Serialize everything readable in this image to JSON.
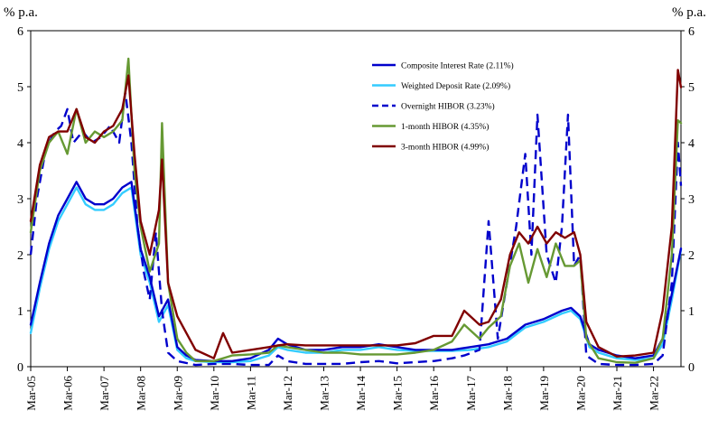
{
  "chart_data": {
    "type": "line",
    "title": "",
    "y_unit_left": "% p.a.",
    "y_unit_right": "% p.a.",
    "ylim": [
      0,
      6
    ],
    "yticks": [
      0,
      1,
      2,
      3,
      4,
      5,
      6
    ],
    "xlim": [
      "2005-03",
      "2022-12"
    ],
    "xticks": [
      "Mar-05",
      "Mar-06",
      "Mar-07",
      "Mar-08",
      "Mar-09",
      "Mar-10",
      "Mar-11",
      "Mar-12",
      "Mar-13",
      "Mar-14",
      "Mar-15",
      "Mar-16",
      "Mar-17",
      "Mar-18",
      "Mar-19",
      "Mar-20",
      "Mar-21",
      "Mar-22"
    ],
    "legend_position": "top-right",
    "grid": false,
    "series": [
      {
        "name": "Composite Interest Rate (2.11%)",
        "color": "#0000cc",
        "dash": "solid",
        "points": [
          [
            "2005-03",
            0.75
          ],
          [
            "2005-06",
            1.5
          ],
          [
            "2005-09",
            2.2
          ],
          [
            "2005-12",
            2.7
          ],
          [
            "2006-03",
            3.0
          ],
          [
            "2006-06",
            3.3
          ],
          [
            "2006-09",
            3.0
          ],
          [
            "2006-12",
            2.9
          ],
          [
            "2007-03",
            2.9
          ],
          [
            "2007-06",
            3.0
          ],
          [
            "2007-09",
            3.2
          ],
          [
            "2007-12",
            3.3
          ],
          [
            "2008-03",
            2.1
          ],
          [
            "2008-06",
            1.6
          ],
          [
            "2008-09",
            0.9
          ],
          [
            "2008-12",
            1.2
          ],
          [
            "2009-03",
            0.35
          ],
          [
            "2009-06",
            0.2
          ],
          [
            "2009-09",
            0.12
          ],
          [
            "2010-03",
            0.1
          ],
          [
            "2010-09",
            0.1
          ],
          [
            "2011-03",
            0.15
          ],
          [
            "2011-09",
            0.3
          ],
          [
            "2011-12",
            0.5
          ],
          [
            "2012-03",
            0.4
          ],
          [
            "2012-09",
            0.3
          ],
          [
            "2013-03",
            0.3
          ],
          [
            "2013-09",
            0.35
          ],
          [
            "2014-03",
            0.35
          ],
          [
            "2014-09",
            0.4
          ],
          [
            "2015-03",
            0.35
          ],
          [
            "2015-09",
            0.3
          ],
          [
            "2016-03",
            0.3
          ],
          [
            "2016-09",
            0.3
          ],
          [
            "2017-03",
            0.35
          ],
          [
            "2017-09",
            0.4
          ],
          [
            "2018-03",
            0.5
          ],
          [
            "2018-09",
            0.75
          ],
          [
            "2019-03",
            0.85
          ],
          [
            "2019-09",
            1.0
          ],
          [
            "2019-12",
            1.05
          ],
          [
            "2020-03",
            0.9
          ],
          [
            "2020-06",
            0.4
          ],
          [
            "2020-09",
            0.3
          ],
          [
            "2021-03",
            0.2
          ],
          [
            "2021-09",
            0.15
          ],
          [
            "2022-03",
            0.2
          ],
          [
            "2022-06",
            0.5
          ],
          [
            "2022-09",
            1.3
          ],
          [
            "2022-12",
            2.11
          ]
        ]
      },
      {
        "name": "Weighted Deposit Rate (2.09%)",
        "color": "#33ccff",
        "dash": "solid",
        "points": [
          [
            "2005-03",
            0.6
          ],
          [
            "2005-06",
            1.4
          ],
          [
            "2005-09",
            2.1
          ],
          [
            "2005-12",
            2.6
          ],
          [
            "2006-03",
            2.9
          ],
          [
            "2006-06",
            3.2
          ],
          [
            "2006-09",
            2.9
          ],
          [
            "2006-12",
            2.8
          ],
          [
            "2007-03",
            2.8
          ],
          [
            "2007-06",
            2.9
          ],
          [
            "2007-09",
            3.1
          ],
          [
            "2007-12",
            3.2
          ],
          [
            "2008-03",
            2.0
          ],
          [
            "2008-06",
            1.5
          ],
          [
            "2008-09",
            0.8
          ],
          [
            "2008-12",
            1.1
          ],
          [
            "2009-03",
            0.3
          ],
          [
            "2009-06",
            0.15
          ],
          [
            "2009-09",
            0.1
          ],
          [
            "2010-03",
            0.08
          ],
          [
            "2010-09",
            0.08
          ],
          [
            "2011-03",
            0.1
          ],
          [
            "2011-09",
            0.2
          ],
          [
            "2011-12",
            0.35
          ],
          [
            "2012-03",
            0.3
          ],
          [
            "2012-09",
            0.25
          ],
          [
            "2013-03",
            0.25
          ],
          [
            "2013-09",
            0.3
          ],
          [
            "2014-03",
            0.3
          ],
          [
            "2014-09",
            0.35
          ],
          [
            "2015-03",
            0.3
          ],
          [
            "2015-09",
            0.28
          ],
          [
            "2016-03",
            0.28
          ],
          [
            "2016-09",
            0.28
          ],
          [
            "2017-03",
            0.3
          ],
          [
            "2017-09",
            0.35
          ],
          [
            "2018-03",
            0.45
          ],
          [
            "2018-09",
            0.7
          ],
          [
            "2019-03",
            0.8
          ],
          [
            "2019-09",
            0.95
          ],
          [
            "2019-12",
            1.0
          ],
          [
            "2020-03",
            0.85
          ],
          [
            "2020-06",
            0.35
          ],
          [
            "2020-09",
            0.25
          ],
          [
            "2021-03",
            0.15
          ],
          [
            "2021-09",
            0.12
          ],
          [
            "2022-03",
            0.15
          ],
          [
            "2022-06",
            0.4
          ],
          [
            "2022-09",
            1.2
          ],
          [
            "2022-12",
            2.09
          ]
        ]
      },
      {
        "name": "Overnight HIBOR (3.23%)",
        "color": "#0000cc",
        "dash": "dashed",
        "points": [
          [
            "2005-03",
            2.0
          ],
          [
            "2005-05",
            3.0
          ],
          [
            "2005-08",
            3.9
          ],
          [
            "2005-11",
            4.2
          ],
          [
            "2006-01",
            4.3
          ],
          [
            "2006-03",
            4.6
          ],
          [
            "2006-05",
            4.0
          ],
          [
            "2006-08",
            4.2
          ],
          [
            "2006-11",
            4.0
          ],
          [
            "2007-02",
            4.1
          ],
          [
            "2007-05",
            4.3
          ],
          [
            "2007-08",
            4.0
          ],
          [
            "2007-10",
            4.9
          ],
          [
            "2007-12",
            4.0
          ],
          [
            "2008-02",
            2.5
          ],
          [
            "2008-04",
            1.7
          ],
          [
            "2008-06",
            1.2
          ],
          [
            "2008-08",
            2.4
          ],
          [
            "2008-10",
            1.0
          ],
          [
            "2008-12",
            0.25
          ],
          [
            "2009-03",
            0.1
          ],
          [
            "2009-09",
            0.03
          ],
          [
            "2010-03",
            0.05
          ],
          [
            "2010-09",
            0.05
          ],
          [
            "2011-03",
            0.03
          ],
          [
            "2011-09",
            0.03
          ],
          [
            "2011-12",
            0.2
          ],
          [
            "2012-03",
            0.1
          ],
          [
            "2012-09",
            0.05
          ],
          [
            "2013-03",
            0.05
          ],
          [
            "2013-09",
            0.05
          ],
          [
            "2014-03",
            0.08
          ],
          [
            "2014-09",
            0.1
          ],
          [
            "2015-03",
            0.06
          ],
          [
            "2015-09",
            0.08
          ],
          [
            "2016-03",
            0.1
          ],
          [
            "2016-09",
            0.15
          ],
          [
            "2017-01",
            0.2
          ],
          [
            "2017-06",
            0.3
          ],
          [
            "2017-09",
            2.6
          ],
          [
            "2017-12",
            0.5
          ],
          [
            "2018-03",
            1.5
          ],
          [
            "2018-06",
            2.5
          ],
          [
            "2018-09",
            3.8
          ],
          [
            "2018-11",
            2.0
          ],
          [
            "2019-01",
            4.5
          ],
          [
            "2019-04",
            2.0
          ],
          [
            "2019-07",
            1.5
          ],
          [
            "2019-09",
            2.5
          ],
          [
            "2019-11",
            4.5
          ],
          [
            "2020-01",
            1.8
          ],
          [
            "2020-03",
            2.0
          ],
          [
            "2020-05",
            0.2
          ],
          [
            "2020-09",
            0.05
          ],
          [
            "2021-03",
            0.03
          ],
          [
            "2021-09",
            0.03
          ],
          [
            "2022-03",
            0.05
          ],
          [
            "2022-06",
            0.2
          ],
          [
            "2022-09",
            1.5
          ],
          [
            "2022-11",
            4.0
          ],
          [
            "2022-12",
            3.23
          ]
        ]
      },
      {
        "name": "1-month HIBOR (4.35%)",
        "color": "#669933",
        "dash": "solid",
        "points": [
          [
            "2005-03",
            2.4
          ],
          [
            "2005-06",
            3.5
          ],
          [
            "2005-09",
            4.0
          ],
          [
            "2005-12",
            4.2
          ],
          [
            "2006-03",
            3.8
          ],
          [
            "2006-06",
            4.6
          ],
          [
            "2006-09",
            4.0
          ],
          [
            "2006-12",
            4.2
          ],
          [
            "2007-03",
            4.1
          ],
          [
            "2007-06",
            4.2
          ],
          [
            "2007-09",
            4.4
          ],
          [
            "2007-11",
            5.5
          ],
          [
            "2008-01",
            3.5
          ],
          [
            "2008-03",
            2.5
          ],
          [
            "2008-06",
            1.7
          ],
          [
            "2008-09",
            2.2
          ],
          [
            "2008-10",
            4.35
          ],
          [
            "2008-12",
            1.5
          ],
          [
            "2009-03",
            0.5
          ],
          [
            "2009-06",
            0.25
          ],
          [
            "2009-09",
            0.1
          ],
          [
            "2010-03",
            0.1
          ],
          [
            "2010-09",
            0.2
          ],
          [
            "2011-03",
            0.22
          ],
          [
            "2011-09",
            0.25
          ],
          [
            "2011-12",
            0.38
          ],
          [
            "2012-03",
            0.35
          ],
          [
            "2012-09",
            0.3
          ],
          [
            "2013-03",
            0.25
          ],
          [
            "2013-09",
            0.25
          ],
          [
            "2014-03",
            0.22
          ],
          [
            "2014-09",
            0.22
          ],
          [
            "2015-03",
            0.22
          ],
          [
            "2015-09",
            0.25
          ],
          [
            "2016-03",
            0.3
          ],
          [
            "2016-09",
            0.45
          ],
          [
            "2017-01",
            0.75
          ],
          [
            "2017-06",
            0.5
          ],
          [
            "2017-09",
            0.7
          ],
          [
            "2018-01",
            0.9
          ],
          [
            "2018-04",
            1.8
          ],
          [
            "2018-07",
            2.2
          ],
          [
            "2018-10",
            1.5
          ],
          [
            "2019-01",
            2.1
          ],
          [
            "2019-04",
            1.6
          ],
          [
            "2019-07",
            2.2
          ],
          [
            "2019-10",
            1.8
          ],
          [
            "2020-01",
            1.8
          ],
          [
            "2020-03",
            1.9
          ],
          [
            "2020-05",
            0.5
          ],
          [
            "2020-09",
            0.15
          ],
          [
            "2021-03",
            0.08
          ],
          [
            "2021-09",
            0.07
          ],
          [
            "2022-03",
            0.15
          ],
          [
            "2022-06",
            0.5
          ],
          [
            "2022-09",
            2.0
          ],
          [
            "2022-11",
            4.4
          ],
          [
            "2022-12",
            4.35
          ]
        ]
      },
      {
        "name": "3-month HIBOR (4.99%)",
        "color": "#800000",
        "dash": "solid",
        "points": [
          [
            "2005-03",
            2.6
          ],
          [
            "2005-06",
            3.6
          ],
          [
            "2005-09",
            4.1
          ],
          [
            "2005-12",
            4.2
          ],
          [
            "2006-03",
            4.2
          ],
          [
            "2006-06",
            4.6
          ],
          [
            "2006-09",
            4.1
          ],
          [
            "2006-12",
            4.0
          ],
          [
            "2007-03",
            4.2
          ],
          [
            "2007-06",
            4.3
          ],
          [
            "2007-09",
            4.6
          ],
          [
            "2007-11",
            5.2
          ],
          [
            "2008-01",
            3.8
          ],
          [
            "2008-03",
            2.6
          ],
          [
            "2008-06",
            2.0
          ],
          [
            "2008-09",
            2.8
          ],
          [
            "2008-10",
            3.7
          ],
          [
            "2008-12",
            1.5
          ],
          [
            "2009-03",
            0.9
          ],
          [
            "2009-06",
            0.6
          ],
          [
            "2009-09",
            0.3
          ],
          [
            "2010-03",
            0.15
          ],
          [
            "2010-06",
            0.6
          ],
          [
            "2010-09",
            0.25
          ],
          [
            "2011-03",
            0.3
          ],
          [
            "2011-09",
            0.35
          ],
          [
            "2011-12",
            0.38
          ],
          [
            "2012-03",
            0.4
          ],
          [
            "2012-09",
            0.38
          ],
          [
            "2013-03",
            0.38
          ],
          [
            "2013-09",
            0.38
          ],
          [
            "2014-03",
            0.38
          ],
          [
            "2014-09",
            0.38
          ],
          [
            "2015-03",
            0.38
          ],
          [
            "2015-09",
            0.42
          ],
          [
            "2016-03",
            0.55
          ],
          [
            "2016-09",
            0.55
          ],
          [
            "2017-01",
            1.0
          ],
          [
            "2017-06",
            0.75
          ],
          [
            "2017-09",
            0.8
          ],
          [
            "2018-01",
            1.2
          ],
          [
            "2018-04",
            2.0
          ],
          [
            "2018-07",
            2.4
          ],
          [
            "2018-10",
            2.2
          ],
          [
            "2019-01",
            2.5
          ],
          [
            "2019-04",
            2.2
          ],
          [
            "2019-07",
            2.4
          ],
          [
            "2019-10",
            2.3
          ],
          [
            "2020-01",
            2.4
          ],
          [
            "2020-03",
            2.0
          ],
          [
            "2020-05",
            0.8
          ],
          [
            "2020-09",
            0.35
          ],
          [
            "2021-03",
            0.18
          ],
          [
            "2021-09",
            0.2
          ],
          [
            "2022-03",
            0.25
          ],
          [
            "2022-06",
            1.0
          ],
          [
            "2022-09",
            2.5
          ],
          [
            "2022-11",
            5.3
          ],
          [
            "2022-12",
            4.99
          ]
        ]
      }
    ]
  }
}
